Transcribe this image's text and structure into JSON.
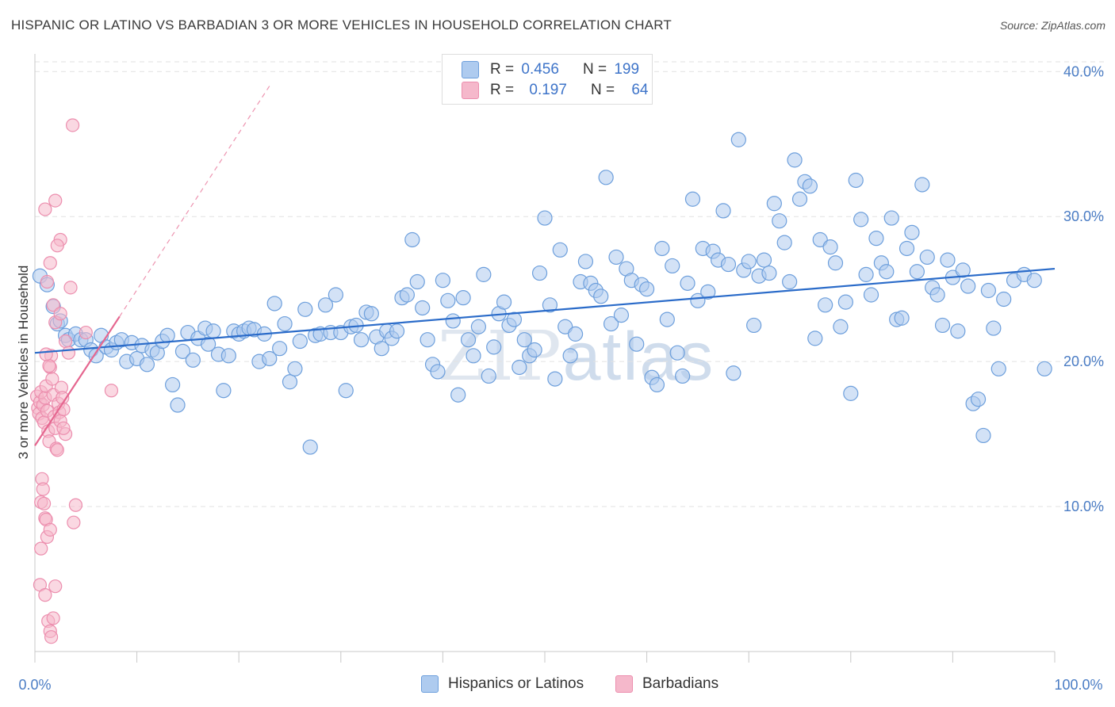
{
  "title": "HISPANIC OR LATINO VS BARBADIAN 3 OR MORE VEHICLES IN HOUSEHOLD CORRELATION CHART",
  "source": "Source: ZipAtlas.com",
  "watermark": {
    "zip": "ZIP",
    "atlas": "atlas"
  },
  "legend": {
    "r_label": "R =",
    "n_label": "N =",
    "series": [
      {
        "r": "0.456",
        "n": "199",
        "color": "#aecbef"
      },
      {
        "r": "0.197",
        "n": "64",
        "color": "#f5b8cb"
      }
    ]
  },
  "bottom_legend": [
    "Hispanics or Latinos",
    "Barbadians"
  ],
  "chart_data": {
    "type": "scatter",
    "ylabel": "3 or more Vehicles in Household",
    "x_tick_labels": [
      "0.0%",
      "100.0%"
    ],
    "y_tick_labels": [
      "10.0%",
      "20.0%",
      "30.0%",
      "40.0%"
    ],
    "xlim": [
      0,
      100
    ],
    "ylim": [
      0,
      41
    ],
    "grid": true,
    "series": [
      {
        "name": "Hispanics or Latinos",
        "color": "#6d9fdc",
        "fill": "#aecbef",
        "trend": {
          "x": [
            0,
            100
          ],
          "y": [
            20.6,
            26.4
          ],
          "color": "#2a6bc9"
        },
        "points": [
          [
            0.5,
            25.9
          ],
          [
            1.2,
            25.3
          ],
          [
            1.8,
            23.8
          ],
          [
            2.2,
            22.6
          ],
          [
            2.5,
            22.8
          ],
          [
            3.0,
            21.8
          ],
          [
            3.3,
            21.5
          ],
          [
            4.0,
            21.9
          ],
          [
            4.5,
            21.5
          ],
          [
            5.0,
            21.5
          ],
          [
            5.5,
            20.8
          ],
          [
            6.0,
            20.4
          ],
          [
            6.5,
            21.8
          ],
          [
            7.0,
            21.0
          ],
          [
            7.5,
            20.8
          ],
          [
            8.0,
            21.3
          ],
          [
            8.5,
            21.5
          ],
          [
            9.0,
            20.0
          ],
          [
            9.5,
            21.3
          ],
          [
            10.0,
            20.2
          ],
          [
            10.5,
            21.1
          ],
          [
            11.0,
            19.8
          ],
          [
            11.5,
            20.8
          ],
          [
            12.0,
            20.6
          ],
          [
            12.5,
            21.4
          ],
          [
            13.0,
            21.8
          ],
          [
            13.5,
            18.4
          ],
          [
            14.0,
            17.0
          ],
          [
            14.5,
            20.7
          ],
          [
            15.0,
            22.0
          ],
          [
            15.5,
            20.1
          ],
          [
            16.0,
            21.6
          ],
          [
            16.7,
            22.3
          ],
          [
            17.0,
            21.2
          ],
          [
            17.5,
            22.1
          ],
          [
            18.0,
            20.5
          ],
          [
            18.5,
            18.0
          ],
          [
            19.0,
            20.4
          ],
          [
            19.5,
            22.1
          ],
          [
            20.0,
            21.9
          ],
          [
            20.5,
            22.1
          ],
          [
            21.0,
            22.3
          ],
          [
            21.5,
            22.2
          ],
          [
            22.0,
            20.0
          ],
          [
            22.5,
            21.9
          ],
          [
            23.0,
            20.2
          ],
          [
            23.5,
            24.0
          ],
          [
            24.0,
            20.9
          ],
          [
            24.5,
            22.6
          ],
          [
            25.0,
            18.6
          ],
          [
            25.5,
            19.5
          ],
          [
            26.0,
            21.4
          ],
          [
            26.5,
            23.6
          ],
          [
            27.0,
            14.1
          ],
          [
            27.5,
            21.8
          ],
          [
            28.0,
            21.9
          ],
          [
            28.5,
            23.9
          ],
          [
            29.0,
            22.0
          ],
          [
            29.5,
            24.6
          ],
          [
            30.0,
            22.0
          ],
          [
            30.5,
            18.0
          ],
          [
            31.0,
            22.4
          ],
          [
            31.5,
            22.5
          ],
          [
            32.0,
            21.5
          ],
          [
            32.5,
            23.4
          ],
          [
            33.0,
            23.3
          ],
          [
            33.5,
            21.7
          ],
          [
            34.0,
            20.9
          ],
          [
            34.5,
            22.1
          ],
          [
            35.0,
            21.6
          ],
          [
            35.5,
            22.1
          ],
          [
            36.0,
            24.4
          ],
          [
            36.5,
            24.6
          ],
          [
            37.0,
            28.4
          ],
          [
            37.5,
            25.5
          ],
          [
            38.0,
            23.7
          ],
          [
            38.5,
            21.5
          ],
          [
            39.0,
            19.8
          ],
          [
            39.5,
            19.3
          ],
          [
            40.0,
            25.6
          ],
          [
            40.5,
            24.2
          ],
          [
            41.0,
            22.8
          ],
          [
            41.5,
            17.7
          ],
          [
            42.0,
            24.4
          ],
          [
            42.5,
            21.5
          ],
          [
            43.0,
            20.4
          ],
          [
            43.5,
            22.4
          ],
          [
            44.0,
            26.0
          ],
          [
            44.5,
            19.0
          ],
          [
            45.0,
            21.0
          ],
          [
            45.5,
            23.3
          ],
          [
            46.0,
            24.1
          ],
          [
            46.5,
            22.5
          ],
          [
            47.0,
            22.9
          ],
          [
            47.5,
            19.6
          ],
          [
            48.0,
            21.5
          ],
          [
            48.5,
            20.4
          ],
          [
            49.0,
            20.8
          ],
          [
            49.5,
            26.1
          ],
          [
            50.0,
            29.9
          ],
          [
            50.5,
            23.9
          ],
          [
            51.0,
            18.8
          ],
          [
            51.5,
            27.7
          ],
          [
            52.0,
            22.4
          ],
          [
            52.5,
            20.4
          ],
          [
            53.0,
            21.9
          ],
          [
            53.5,
            25.5
          ],
          [
            54.0,
            26.9
          ],
          [
            54.5,
            25.4
          ],
          [
            55.0,
            24.9
          ],
          [
            55.5,
            24.5
          ],
          [
            56.0,
            32.7
          ],
          [
            56.5,
            22.6
          ],
          [
            57.0,
            27.2
          ],
          [
            57.5,
            23.2
          ],
          [
            58.0,
            26.4
          ],
          [
            58.5,
            25.6
          ],
          [
            59.0,
            21.2
          ],
          [
            59.5,
            25.3
          ],
          [
            60.0,
            25.0
          ],
          [
            60.5,
            18.9
          ],
          [
            61.0,
            18.4
          ],
          [
            61.5,
            27.8
          ],
          [
            62.0,
            22.9
          ],
          [
            62.5,
            26.6
          ],
          [
            63.0,
            20.6
          ],
          [
            63.5,
            19.0
          ],
          [
            64.0,
            25.4
          ],
          [
            64.5,
            31.2
          ],
          [
            65.0,
            24.2
          ],
          [
            65.5,
            27.8
          ],
          [
            66.0,
            24.8
          ],
          [
            66.5,
            27.6
          ],
          [
            67.0,
            27.0
          ],
          [
            67.5,
            30.4
          ],
          [
            68.0,
            26.7
          ],
          [
            68.5,
            19.2
          ],
          [
            69.0,
            35.3
          ],
          [
            69.5,
            26.3
          ],
          [
            70.0,
            26.9
          ],
          [
            70.5,
            22.5
          ],
          [
            71.0,
            25.9
          ],
          [
            71.5,
            27.0
          ],
          [
            72.0,
            26.1
          ],
          [
            72.5,
            30.9
          ],
          [
            73.0,
            29.7
          ],
          [
            73.5,
            28.2
          ],
          [
            74.0,
            25.5
          ],
          [
            74.5,
            33.9
          ],
          [
            75.0,
            31.2
          ],
          [
            75.5,
            32.4
          ],
          [
            76.0,
            32.1
          ],
          [
            76.5,
            21.6
          ],
          [
            77.0,
            28.4
          ],
          [
            77.5,
            23.9
          ],
          [
            78.0,
            27.9
          ],
          [
            78.5,
            26.8
          ],
          [
            79.0,
            22.4
          ],
          [
            79.5,
            24.1
          ],
          [
            80.0,
            17.8
          ],
          [
            80.5,
            32.5
          ],
          [
            81.0,
            29.8
          ],
          [
            81.5,
            26.0
          ],
          [
            82.0,
            24.6
          ],
          [
            82.5,
            28.5
          ],
          [
            83.0,
            26.8
          ],
          [
            83.5,
            26.2
          ],
          [
            84.0,
            29.9
          ],
          [
            84.5,
            22.9
          ],
          [
            85.0,
            23.0
          ],
          [
            85.5,
            27.8
          ],
          [
            86.0,
            28.9
          ],
          [
            86.5,
            26.2
          ],
          [
            87.0,
            32.2
          ],
          [
            87.5,
            27.2
          ],
          [
            88.0,
            25.1
          ],
          [
            88.5,
            24.6
          ],
          [
            89.0,
            22.5
          ],
          [
            89.5,
            27.0
          ],
          [
            90.0,
            25.8
          ],
          [
            90.5,
            22.1
          ],
          [
            91.0,
            26.3
          ],
          [
            91.5,
            25.2
          ],
          [
            92.0,
            17.1
          ],
          [
            92.5,
            17.4
          ],
          [
            93.0,
            14.9
          ],
          [
            93.5,
            24.9
          ],
          [
            94.0,
            22.3
          ],
          [
            94.5,
            19.5
          ],
          [
            95.0,
            24.3
          ],
          [
            96.0,
            25.6
          ],
          [
            97.0,
            26.0
          ],
          [
            98.0,
            25.6
          ],
          [
            99.0,
            19.5
          ]
        ]
      },
      {
        "name": "Barbadians",
        "color": "#ec8eae",
        "fill": "#f5b8cb",
        "trend": {
          "x": [
            0,
            8.3
          ],
          "y": [
            14.2,
            23.1
          ],
          "color": "#e5668f"
        },
        "trend_extension": {
          "x": [
            8.3,
            23.0
          ],
          "y": [
            23.1,
            39.0
          ]
        },
        "points": [
          [
            0.2,
            17.6
          ],
          [
            0.3,
            16.8
          ],
          [
            0.4,
            16.4
          ],
          [
            0.5,
            17.2
          ],
          [
            0.6,
            17.9
          ],
          [
            0.7,
            16.1
          ],
          [
            0.8,
            17.0
          ],
          [
            0.9,
            15.8
          ],
          [
            1.0,
            17.5
          ],
          [
            1.1,
            18.3
          ],
          [
            1.2,
            16.6
          ],
          [
            1.3,
            15.2
          ],
          [
            1.4,
            14.5
          ],
          [
            1.5,
            19.6
          ],
          [
            1.6,
            20.4
          ],
          [
            1.7,
            18.8
          ],
          [
            1.8,
            17.7
          ],
          [
            1.9,
            16.2
          ],
          [
            2.0,
            15.4
          ],
          [
            2.1,
            14.0
          ],
          [
            2.2,
            13.9
          ],
          [
            2.3,
            17.1
          ],
          [
            2.4,
            16.5
          ],
          [
            2.5,
            15.9
          ],
          [
            2.6,
            18.2
          ],
          [
            2.7,
            17.5
          ],
          [
            2.8,
            16.7
          ],
          [
            0.6,
            10.3
          ],
          [
            0.7,
            11.9
          ],
          [
            0.8,
            11.2
          ],
          [
            0.9,
            10.2
          ],
          [
            1.0,
            9.2
          ],
          [
            1.1,
            9.1
          ],
          [
            1.2,
            7.9
          ],
          [
            0.6,
            7.1
          ],
          [
            1.5,
            8.4
          ],
          [
            0.5,
            4.6
          ],
          [
            1.0,
            3.9
          ],
          [
            2.0,
            4.5
          ],
          [
            1.3,
            2.1
          ],
          [
            1.8,
            2.3
          ],
          [
            1.5,
            1.4
          ],
          [
            1.6,
            1.0
          ],
          [
            1.0,
            30.5
          ],
          [
            2.0,
            31.1
          ],
          [
            1.5,
            26.8
          ],
          [
            2.5,
            28.4
          ],
          [
            2.2,
            28.0
          ],
          [
            1.2,
            25.5
          ],
          [
            1.8,
            23.9
          ],
          [
            2.0,
            22.7
          ],
          [
            2.5,
            23.3
          ],
          [
            3.0,
            21.4
          ],
          [
            3.3,
            20.6
          ],
          [
            3.7,
            36.3
          ],
          [
            3.5,
            25.1
          ],
          [
            4.0,
            10.1
          ],
          [
            3.8,
            8.9
          ],
          [
            5.0,
            22.0
          ],
          [
            7.5,
            18.0
          ],
          [
            3.0,
            15.0
          ],
          [
            2.8,
            15.4
          ],
          [
            1.4,
            19.7
          ],
          [
            1.1,
            20.5
          ]
        ]
      }
    ]
  }
}
